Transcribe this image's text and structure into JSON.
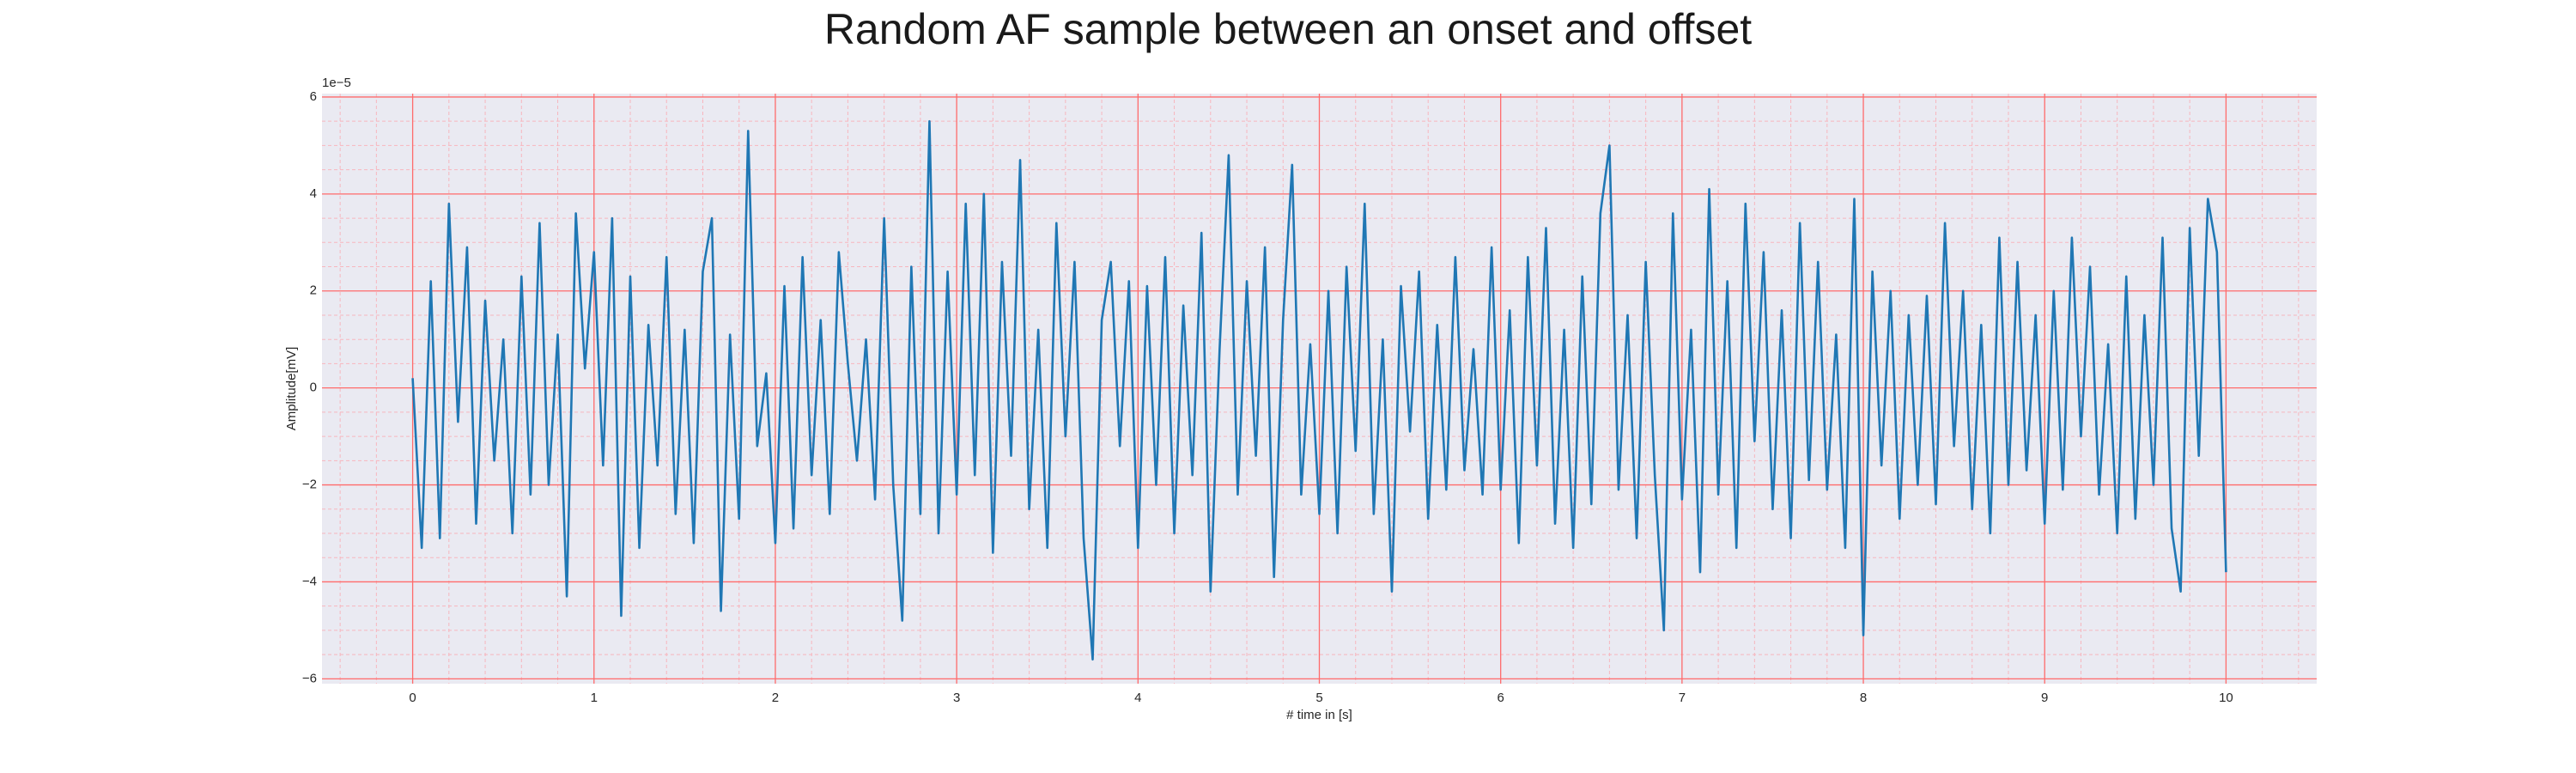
{
  "chart_data": {
    "type": "line",
    "title": "Random AF sample between an onset and offset",
    "xlabel": "# time in [s]",
    "ylabel": "Amplitude[mV]",
    "y_offset_label": "1e−5",
    "color": "#1f77b4",
    "background": "#eaeaf2",
    "grid": true,
    "grid_color": "#ff6b6b",
    "minor_grid_color": "#f7b6be",
    "xlim": [
      -0.5,
      10.5
    ],
    "ylim": [
      -6.1,
      6.07
    ],
    "xticks": [
      0,
      1,
      2,
      3,
      4,
      5,
      6,
      7,
      8,
      9,
      10
    ],
    "yticks": [
      {
        "value": -6,
        "label": "−6"
      },
      {
        "value": -4,
        "label": "−4"
      },
      {
        "value": -2,
        "label": "−2"
      },
      0,
      2,
      4,
      6
    ],
    "xminorticks": [
      -0.4,
      -0.2,
      0.2,
      0.4,
      0.6,
      0.8,
      1.2,
      1.4,
      1.6,
      1.8,
      2.2,
      2.4,
      2.6,
      2.8,
      3.2,
      3.4,
      3.6,
      3.8,
      4.2,
      4.4,
      4.6,
      4.8,
      5.2,
      5.4,
      5.6,
      5.8,
      6.2,
      6.4,
      6.6,
      6.8,
      7.2,
      7.4,
      7.6,
      7.8,
      8.2,
      8.4,
      8.6,
      8.8,
      9.2,
      9.4,
      9.6,
      9.8,
      10.2,
      10.4
    ],
    "yminorticks": [
      -5.5,
      -5,
      -4.5,
      -3.5,
      -3,
      -2.5,
      -1.5,
      -1,
      -0.5,
      0.5,
      1,
      1.5,
      2.5,
      3,
      3.5,
      4.5,
      5,
      5.5
    ],
    "x": [
      0,
      0.05,
      0.1,
      0.15,
      0.2,
      0.25,
      0.3,
      0.35,
      0.4,
      0.45,
      0.5,
      0.55,
      0.6,
      0.65,
      0.7,
      0.75,
      0.8,
      0.85,
      0.9,
      0.95,
      1,
      1.05,
      1.1,
      1.15,
      1.2,
      1.25,
      1.3,
      1.35,
      1.4,
      1.45,
      1.5,
      1.55,
      1.6,
      1.65,
      1.7,
      1.75,
      1.8,
      1.85,
      1.9,
      1.95,
      2,
      2.05,
      2.1,
      2.15,
      2.2,
      2.25,
      2.3,
      2.35,
      2.4,
      2.45,
      2.5,
      2.55,
      2.6,
      2.65,
      2.7,
      2.75,
      2.8,
      2.85,
      2.9,
      2.95,
      3,
      3.05,
      3.1,
      3.15,
      3.2,
      3.25,
      3.3,
      3.35,
      3.4,
      3.45,
      3.5,
      3.55,
      3.6,
      3.65,
      3.7,
      3.75,
      3.8,
      3.85,
      3.9,
      3.95,
      4,
      4.05,
      4.1,
      4.15,
      4.2,
      4.25,
      4.3,
      4.35,
      4.4,
      4.45,
      4.5,
      4.55,
      4.6,
      4.65,
      4.7,
      4.75,
      4.8,
      4.85,
      4.9,
      4.95,
      5,
      5.05,
      5.1,
      5.15,
      5.2,
      5.25,
      5.3,
      5.35,
      5.4,
      5.45,
      5.5,
      5.55,
      5.6,
      5.65,
      5.7,
      5.75,
      5.8,
      5.85,
      5.9,
      5.95,
      6,
      6.05,
      6.1,
      6.15,
      6.2,
      6.25,
      6.3,
      6.35,
      6.4,
      6.45,
      6.5,
      6.55,
      6.6,
      6.65,
      6.7,
      6.75,
      6.8,
      6.85,
      6.9,
      6.95,
      7,
      7.05,
      7.1,
      7.15,
      7.2,
      7.25,
      7.3,
      7.35,
      7.4,
      7.45,
      7.5,
      7.55,
      7.6,
      7.65,
      7.7,
      7.75,
      7.8,
      7.85,
      7.9,
      7.95,
      8,
      8.05,
      8.1,
      8.15,
      8.2,
      8.25,
      8.3,
      8.35,
      8.4,
      8.45,
      8.5,
      8.55,
      8.6,
      8.65,
      8.7,
      8.75,
      8.8,
      8.85,
      8.9,
      8.95,
      9,
      9.05,
      9.1,
      9.15,
      9.2,
      9.25,
      9.3,
      9.35,
      9.4,
      9.45,
      9.5,
      9.55,
      9.6,
      9.65,
      9.7,
      9.75,
      9.8,
      9.85,
      9.9,
      9.95,
      10
    ],
    "values": [
      0.2,
      -3.3,
      2.2,
      -3.1,
      3.8,
      -0.7,
      2.9,
      -2.8,
      1.8,
      -1.5,
      1.0,
      -3.0,
      2.3,
      -2.2,
      3.4,
      -2.0,
      1.1,
      -4.3,
      3.6,
      0.4,
      2.8,
      -1.6,
      3.5,
      -4.7,
      2.3,
      -3.3,
      1.3,
      -1.6,
      2.7,
      -2.6,
      1.2,
      -3.2,
      2.4,
      3.5,
      -4.6,
      1.1,
      -2.7,
      5.3,
      -1.2,
      0.3,
      -3.2,
      2.1,
      -2.9,
      2.7,
      -1.8,
      1.4,
      -2.6,
      2.8,
      0.5,
      -1.5,
      1.0,
      -2.3,
      3.5,
      -2.0,
      -4.8,
      2.5,
      -2.6,
      5.5,
      -3.0,
      2.4,
      -2.2,
      3.8,
      -1.8,
      4.0,
      -3.4,
      2.6,
      -1.4,
      4.7,
      -2.5,
      1.2,
      -3.3,
      3.4,
      -1.0,
      2.6,
      -3.1,
      -5.6,
      1.4,
      2.6,
      -1.2,
      2.2,
      -3.3,
      2.1,
      -2.0,
      2.7,
      -3.0,
      1.7,
      -1.8,
      3.2,
      -4.2,
      0.8,
      4.8,
      -2.2,
      2.2,
      -1.4,
      2.9,
      -3.9,
      1.4,
      4.6,
      -2.2,
      0.9,
      -2.6,
      2.0,
      -3.0,
      2.5,
      -1.3,
      3.8,
      -2.6,
      1.0,
      -4.2,
      2.1,
      -0.9,
      2.4,
      -2.7,
      1.3,
      -2.1,
      2.7,
      -1.7,
      0.8,
      -2.2,
      2.9,
      -2.1,
      1.6,
      -3.2,
      2.7,
      -1.6,
      3.3,
      -2.8,
      1.2,
      -3.3,
      2.3,
      -2.4,
      3.6,
      5.0,
      -2.1,
      1.5,
      -3.1,
      2.6,
      -1.8,
      -5.0,
      3.6,
      -2.3,
      1.2,
      -3.8,
      4.1,
      -2.2,
      2.2,
      -3.3,
      3.8,
      -1.1,
      2.8,
      -2.5,
      1.6,
      -3.1,
      3.4,
      -1.9,
      2.6,
      -2.1,
      1.1,
      -3.3,
      3.9,
      -5.1,
      2.4,
      -1.6,
      2.0,
      -2.7,
      1.5,
      -2.0,
      1.9,
      -2.4,
      3.4,
      -1.2,
      2.0,
      -2.5,
      1.3,
      -3.0,
      3.1,
      -2.0,
      2.6,
      -1.7,
      1.5,
      -2.8,
      2.0,
      -2.1,
      3.1,
      -1.0,
      2.5,
      -2.2,
      0.9,
      -3.0,
      2.3,
      -2.7,
      1.5,
      -2.0,
      3.1,
      -2.9,
      -4.2,
      3.3,
      -1.4,
      3.9,
      2.8,
      -3.8
    ]
  }
}
